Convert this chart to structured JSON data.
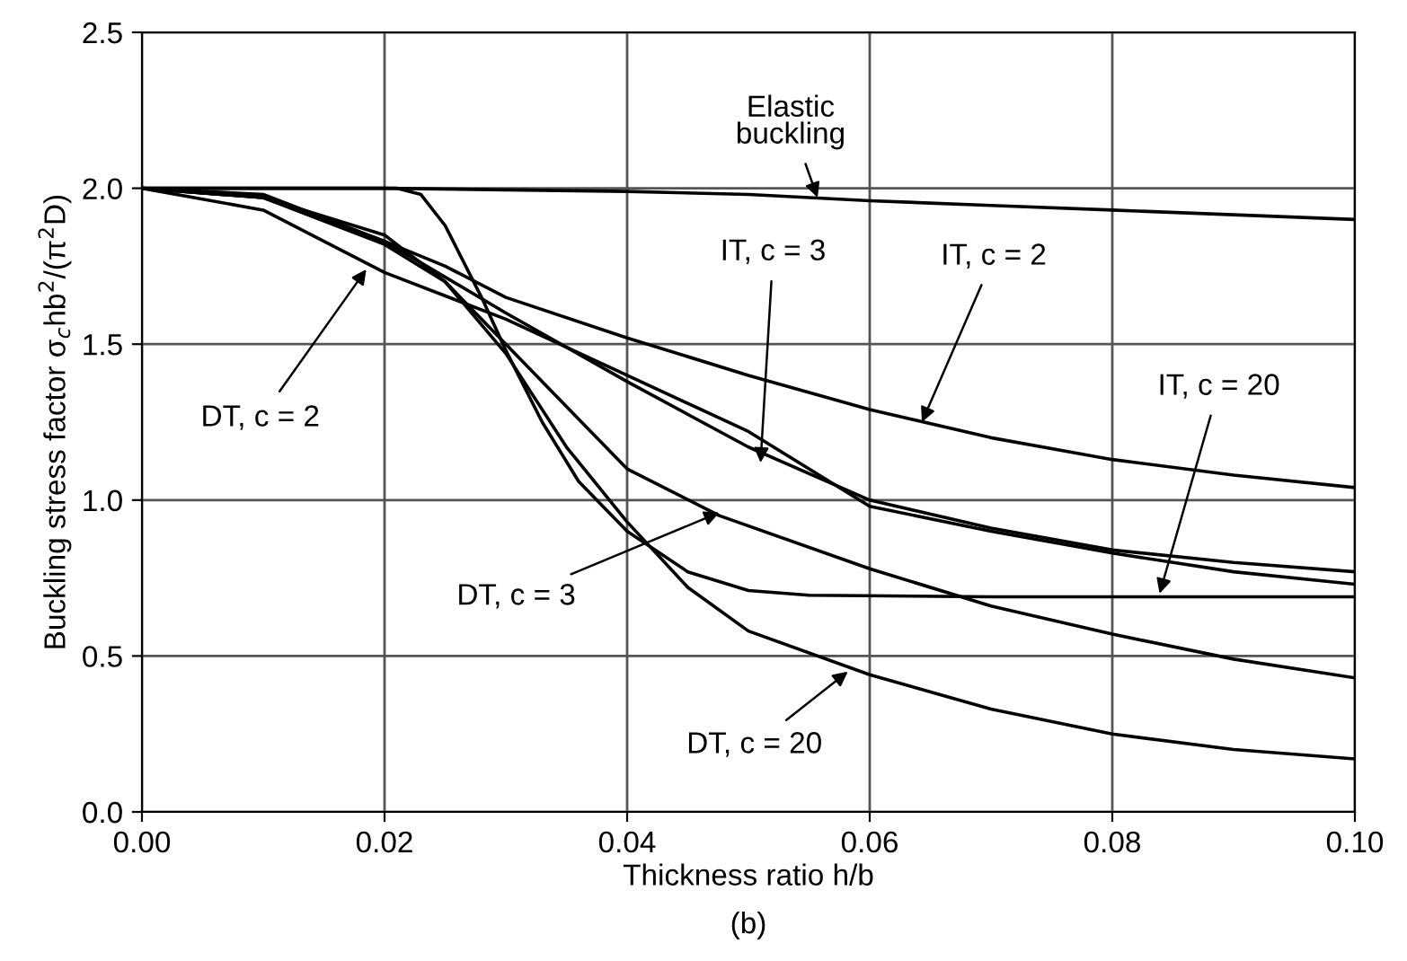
{
  "chart_data": {
    "type": "line",
    "xlabel": "Thickness ratio h/b",
    "ylabel": "Buckling stress factor σ$_{c}$hb$^{2}$/(π$^{2}$D)",
    "xlim": [
      0,
      0.1
    ],
    "ylim": [
      0,
      2.5
    ],
    "xticks": [
      {
        "value": 0,
        "label": "0.00"
      },
      {
        "value": 0.02,
        "label": "0.02"
      },
      {
        "value": 0.04,
        "label": "0.04"
      },
      {
        "value": 0.06,
        "label": "0.06"
      },
      {
        "value": 0.08,
        "label": "0.08"
      },
      {
        "value": 0.1,
        "label": "0.10"
      }
    ],
    "yticks": [
      {
        "value": 0,
        "label": "0.0"
      },
      {
        "value": 0.5,
        "label": "0.5"
      },
      {
        "value": 1,
        "label": "1.0"
      },
      {
        "value": 1.5,
        "label": "1.5"
      },
      {
        "value": 2,
        "label": "2.0"
      },
      {
        "value": 2.5,
        "label": "2.5"
      }
    ],
    "grid": true,
    "marker": "none",
    "line_style": "solid",
    "series": [
      {
        "color": "#000000",
        "x": [
          0,
          0.02,
          0.03,
          0.04,
          0.05,
          0.06,
          0.07,
          0.08,
          0.09,
          0.1
        ],
        "values": [
          2.0,
          2.0,
          1.995,
          1.99,
          1.98,
          1.96,
          1.945,
          1.93,
          1.915,
          1.9
        ]
      },
      {
        "color": "#000000",
        "x": [
          0,
          0.01,
          0.02,
          0.025,
          0.03,
          0.04,
          0.05,
          0.06,
          0.07,
          0.08,
          0.09,
          0.1
        ],
        "values": [
          2.0,
          1.97,
          1.83,
          1.75,
          1.65,
          1.52,
          1.4,
          1.29,
          1.2,
          1.13,
          1.08,
          1.04
        ]
      },
      {
        "color": "#000000",
        "x": [
          0,
          0.01,
          0.02,
          0.03,
          0.04,
          0.05,
          0.06,
          0.07,
          0.08,
          0.09,
          0.1
        ],
        "values": [
          2.0,
          1.98,
          1.83,
          1.6,
          1.38,
          1.17,
          1.0,
          0.91,
          0.84,
          0.8,
          0.77
        ]
      },
      {
        "color": "#000000",
        "x": [
          0,
          0.021,
          0.023,
          0.025,
          0.028,
          0.03,
          0.033,
          0.036,
          0.04,
          0.045,
          0.05,
          0.055,
          0.07,
          0.1
        ],
        "values": [
          2.0,
          2.0,
          1.98,
          1.88,
          1.65,
          1.48,
          1.25,
          1.06,
          0.9,
          0.77,
          0.71,
          0.695,
          0.69,
          0.69
        ]
      },
      {
        "color": "#000000",
        "x": [
          0,
          0.01,
          0.02,
          0.03,
          0.04,
          0.05,
          0.06,
          0.07,
          0.08,
          0.09,
          0.1
        ],
        "values": [
          2.0,
          1.93,
          1.73,
          1.58,
          1.4,
          1.22,
          0.98,
          0.9,
          0.83,
          0.77,
          0.73
        ]
      },
      {
        "color": "#000000",
        "x": [
          0,
          0.01,
          0.02,
          0.025,
          0.03,
          0.035,
          0.04,
          0.0476,
          0.06,
          0.07,
          0.08,
          0.09,
          0.1
        ],
        "values": [
          2.0,
          1.97,
          1.82,
          1.7,
          1.5,
          1.3,
          1.1,
          0.95,
          0.78,
          0.66,
          0.57,
          0.49,
          0.43
        ]
      },
      {
        "color": "#000000",
        "x": [
          0,
          0.01,
          0.02,
          0.025,
          0.03,
          0.035,
          0.04,
          0.045,
          0.05,
          0.06,
          0.07,
          0.08,
          0.09,
          0.1
        ],
        "values": [
          2.0,
          1.97,
          1.85,
          1.7,
          1.47,
          1.17,
          0.93,
          0.72,
          0.58,
          0.44,
          0.33,
          0.25,
          0.2,
          0.17
        ]
      }
    ],
    "annotations": [
      {
        "text": "Elastic\nbuckling",
        "x": 0.0557,
        "y": 1.97
      },
      {
        "text": "IT, c = 3",
        "x": 0.051,
        "y": 1.12
      },
      {
        "text": "IT, c = 2",
        "x": 0.0643,
        "y": 1.25
      },
      {
        "text": "IT, c = 20",
        "x": 0.0839,
        "y": 0.7
      },
      {
        "text": "DT, c = 2",
        "x": 0.0185,
        "y": 1.74
      },
      {
        "text": "DT, c = 3",
        "x": 0.0476,
        "y": 0.96
      },
      {
        "text": "DT, c = 20",
        "x": 0.0582,
        "y": 0.45
      },
      "(b)"
    ]
  }
}
